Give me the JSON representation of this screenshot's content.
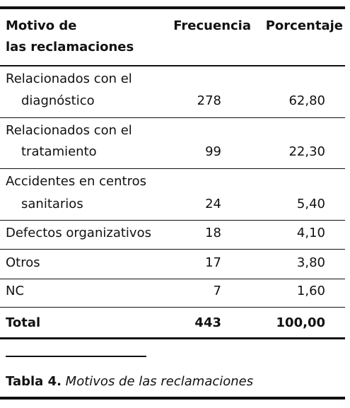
{
  "header": {
    "label_lines": [
      "Motivo de",
      "las reclamaciones"
    ],
    "frequency": "Frecuencia",
    "percent": "Porcentaje"
  },
  "table": {
    "rows": [
      {
        "label_lines": [
          "Relacionados con el",
          "diagnóstico"
        ],
        "frequency": "278",
        "percent": "62,80"
      },
      {
        "label_lines": [
          "Relacionados con el",
          "tratamiento"
        ],
        "frequency": "99",
        "percent": "22,30"
      },
      {
        "label_lines": [
          "Accidentes en centros",
          "sanitarios"
        ],
        "frequency": "24",
        "percent": "5,40"
      },
      {
        "label_lines": [
          "Defectos organizativos"
        ],
        "frequency": "18",
        "percent": "4,10"
      },
      {
        "label_lines": [
          "Otros"
        ],
        "frequency": "17",
        "percent": "3,80"
      },
      {
        "label_lines": [
          "NC"
        ],
        "frequency": "7",
        "percent": "1,60"
      }
    ],
    "total": {
      "label": "Total",
      "frequency": "443",
      "percent": "100,00"
    }
  },
  "caption": {
    "label": "Tabla 4.",
    "text": "Motivos de las reclamaciones"
  }
}
